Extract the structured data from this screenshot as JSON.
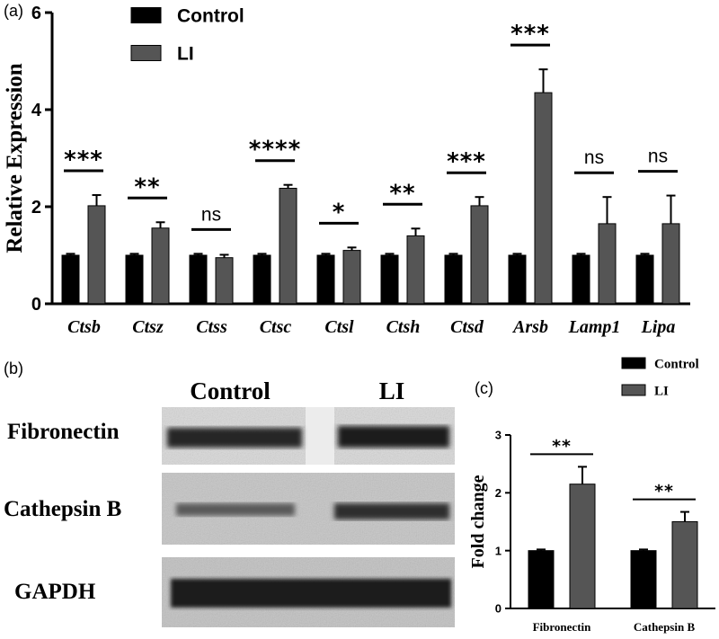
{
  "panel_labels": {
    "a": "(a)",
    "b": "(b)",
    "c": "(c)"
  },
  "colors": {
    "control": "#000000",
    "li": "#555555",
    "axis": "#000000"
  },
  "chart_data": [
    {
      "id": "a",
      "type": "bar",
      "ylabel": "Relative Expression",
      "ylim": [
        0,
        6
      ],
      "yticks": [
        0,
        2,
        4,
        6
      ],
      "categories": [
        "Ctsb",
        "Ctsz",
        "Ctss",
        "Ctsc",
        "Ctsl",
        "Ctsh",
        "Ctsd",
        "Arsb",
        "Lamp1",
        "Lipa"
      ],
      "series": [
        {
          "name": "Control",
          "values": [
            1.0,
            1.0,
            1.0,
            1.0,
            1.0,
            1.0,
            1.0,
            1.0,
            1.0,
            1.0
          ],
          "errors": [
            0.03,
            0.03,
            0.03,
            0.03,
            0.03,
            0.03,
            0.03,
            0.03,
            0.03,
            0.03
          ]
        },
        {
          "name": "LI",
          "values": [
            2.02,
            1.56,
            0.95,
            2.38,
            1.1,
            1.4,
            2.02,
            4.35,
            1.65,
            1.65
          ],
          "errors": [
            0.22,
            0.12,
            0.06,
            0.07,
            0.06,
            0.15,
            0.18,
            0.48,
            0.55,
            0.58
          ]
        }
      ],
      "significance": [
        "***",
        "**",
        "ns",
        "****",
        "*",
        "**",
        "***",
        "***",
        "ns",
        "ns"
      ],
      "legend": [
        "Control",
        "LI"
      ]
    },
    {
      "id": "c",
      "type": "bar",
      "ylabel": "Fold change",
      "ylim": [
        0,
        3
      ],
      "yticks": [
        0,
        1,
        2,
        3
      ],
      "categories": [
        "Fibronectin",
        "Cathepsin B"
      ],
      "series": [
        {
          "name": "Control",
          "values": [
            1.0,
            1.0
          ],
          "errors": [
            0.02,
            0.02
          ]
        },
        {
          "name": "LI",
          "values": [
            2.15,
            1.5
          ],
          "errors": [
            0.3,
            0.17
          ]
        }
      ],
      "significance": [
        "**",
        "**"
      ],
      "legend": [
        "Control",
        "LI"
      ]
    }
  ],
  "blot": {
    "columns": [
      "Control",
      "LI"
    ],
    "rows": [
      "Fibronectin",
      "Cathepsin B",
      "GAPDH"
    ]
  }
}
